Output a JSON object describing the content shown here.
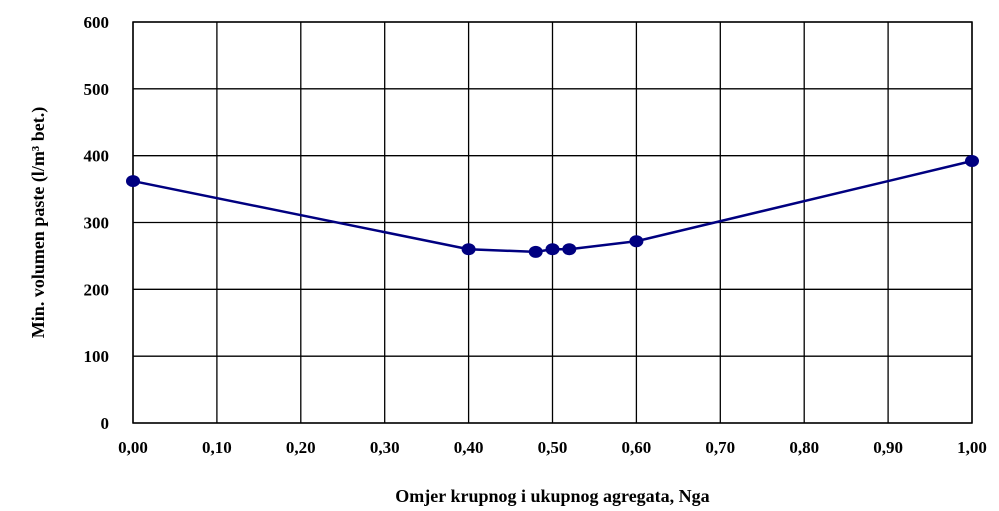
{
  "chart_data": {
    "type": "line",
    "xlabel": "Omjer krupnog i ukupnog agregata, Nga",
    "ylabel": "Min. volumen paste (l/m³ bet.)",
    "xlim": [
      0,
      1
    ],
    "ylim": [
      0,
      600
    ],
    "grid": true,
    "x_ticks": [
      "0,00",
      "0,10",
      "0,20",
      "0,30",
      "0,40",
      "0,50",
      "0,60",
      "0,70",
      "0,80",
      "0,90",
      "1,00"
    ],
    "y_ticks": [
      "0",
      "100",
      "200",
      "300",
      "400",
      "500",
      "600"
    ],
    "series": [
      {
        "color": "#000080",
        "x": [
          0.0,
          0.4,
          0.48,
          0.5,
          0.52,
          0.6,
          1.0
        ],
        "y": [
          362,
          260,
          256,
          260,
          260,
          272,
          392
        ]
      }
    ]
  }
}
